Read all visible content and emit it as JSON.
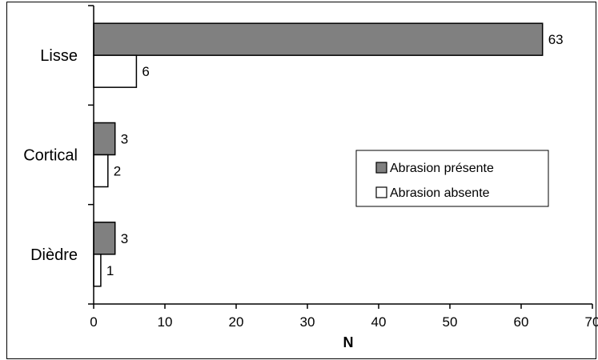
{
  "chart_data": {
    "type": "bar",
    "orientation": "horizontal",
    "categories": [
      "Lisse",
      "Cortical",
      "Dièdre"
    ],
    "series": [
      {
        "name": "Abrasion présente",
        "values": [
          63,
          3,
          3
        ],
        "color": "#808080"
      },
      {
        "name": "Abrasion absente",
        "values": [
          6,
          2,
          1
        ],
        "color": "#ffffff"
      }
    ],
    "title": "",
    "xlabel": "N",
    "ylabel": "",
    "xlim": [
      0,
      70
    ],
    "xticks": [
      "0",
      "10",
      "20",
      "30",
      "40",
      "50",
      "60",
      "70"
    ],
    "grid": false,
    "legend_position": "right",
    "data_labels": true
  }
}
